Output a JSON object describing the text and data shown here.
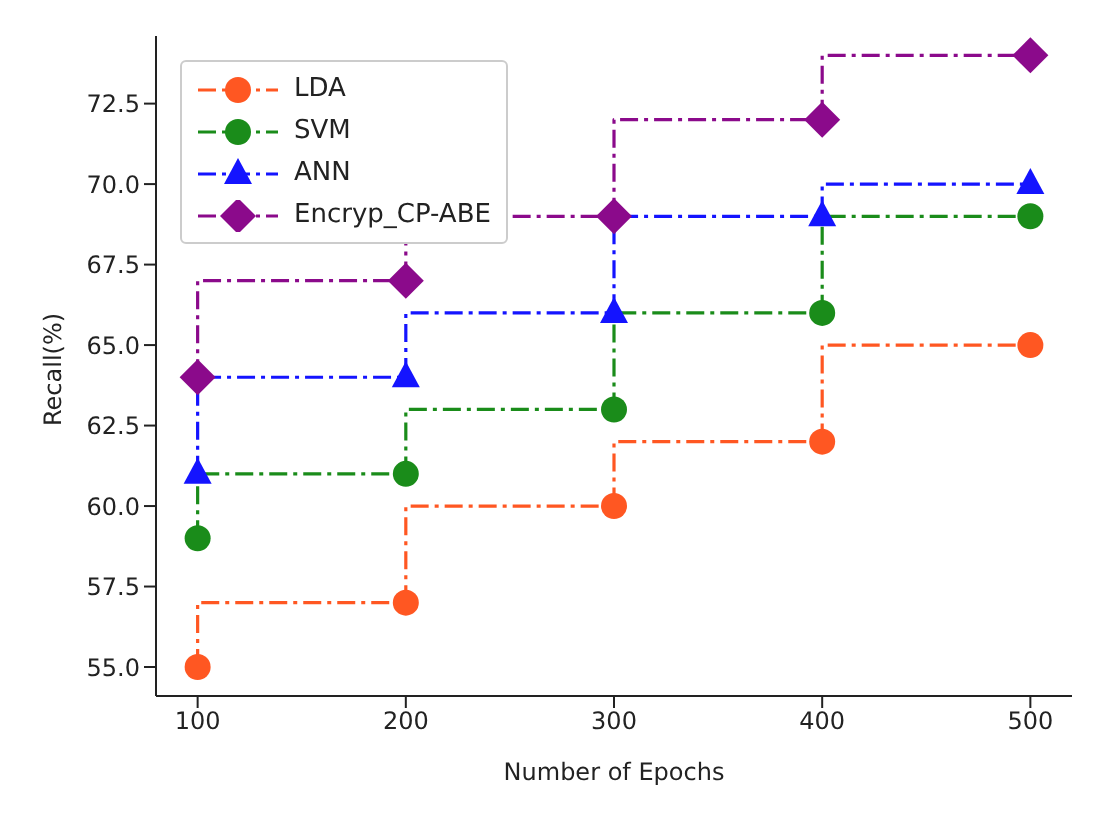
{
  "chart_data": {
    "type": "step",
    "xlabel": "Number of Epochs",
    "ylabel": "Recall(%)",
    "x": [
      100,
      200,
      300,
      400,
      500
    ],
    "xlim": [
      80,
      520
    ],
    "xticks": [
      100,
      200,
      300,
      400,
      500
    ],
    "ylim": [
      54.1,
      74.6
    ],
    "yticks": [
      {
        "value": 55,
        "label": "55.0"
      },
      {
        "value": 57.5,
        "label": "57.5"
      },
      {
        "value": 60,
        "label": "60.0"
      },
      {
        "value": 62.5,
        "label": "62.5"
      },
      {
        "value": 65,
        "label": "65.0"
      },
      {
        "value": 67.5,
        "label": "67.5"
      },
      {
        "value": 70,
        "label": "70.0"
      },
      {
        "value": 72.5,
        "label": "72.5"
      }
    ],
    "legend": "top left",
    "line_style": "dashed",
    "grid": false,
    "series": [
      {
        "name": "LDA",
        "color": "#ff5722",
        "marker": "circle",
        "values": [
          55,
          57,
          60,
          62,
          65
        ]
      },
      {
        "name": "SVM",
        "color": "#1a8c1a",
        "marker": "circle",
        "values": [
          59,
          61,
          63,
          66,
          69
        ]
      },
      {
        "name": "ANN",
        "color": "#1414ff",
        "marker": "triangle",
        "values": [
          61,
          64,
          66,
          69,
          70
        ]
      },
      {
        "name": "Encryp_CP-ABE",
        "color": "#8b0a8b",
        "marker": "diamond",
        "values": [
          64,
          67,
          69,
          72,
          74
        ]
      }
    ]
  }
}
